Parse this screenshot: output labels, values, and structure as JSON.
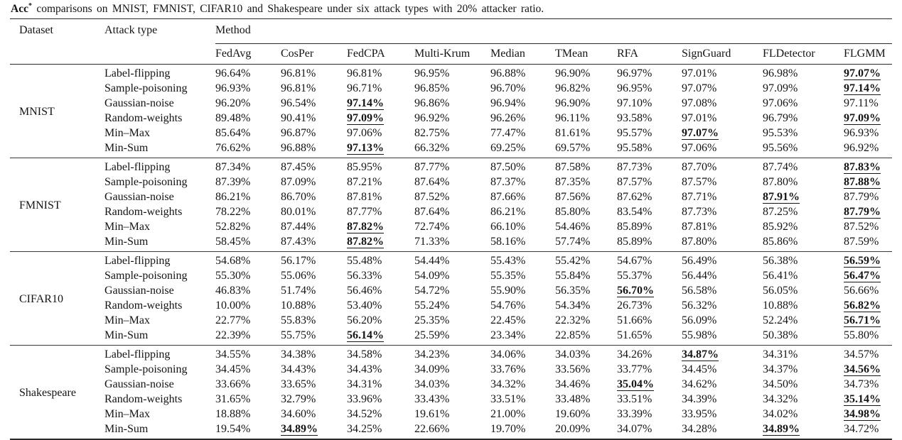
{
  "caption": {
    "metric": "Acc",
    "metric_sup": "*",
    "rest": " comparisons on MNIST, FMNIST, CIFAR10 and Shakespeare under six attack types with 20% attacker ratio."
  },
  "table": {
    "headers": {
      "dataset": "Dataset",
      "attack_type": "Attack type",
      "method_group": "Method",
      "methods": [
        "FedAvg",
        "CosPer",
        "FedCPA",
        "Multi-Krum",
        "Median",
        "TMean",
        "RFA",
        "SignGuard",
        "FLDetector",
        "FLGMM"
      ]
    },
    "groups": [
      {
        "dataset": "MNIST",
        "rows": [
          {
            "attack": "Label-flipping",
            "values": [
              "96.64%",
              "96.81%",
              "96.81%",
              "96.95%",
              "96.88%",
              "96.90%",
              "96.97%",
              "97.01%",
              "96.98%",
              "97.07%"
            ],
            "best": [
              9
            ]
          },
          {
            "attack": "Sample-poisoning",
            "values": [
              "96.93%",
              "96.81%",
              "96.71%",
              "96.85%",
              "96.70%",
              "96.82%",
              "96.95%",
              "97.07%",
              "97.09%",
              "97.14%"
            ],
            "best": [
              9
            ]
          },
          {
            "attack": "Gaussian-noise",
            "values": [
              "96.20%",
              "96.54%",
              "97.14%",
              "96.86%",
              "96.94%",
              "96.90%",
              "97.10%",
              "97.08%",
              "97.06%",
              "97.11%"
            ],
            "best": [
              2
            ]
          },
          {
            "attack": "Random-weights",
            "values": [
              "89.48%",
              "90.41%",
              "97.09%",
              "96.92%",
              "96.26%",
              "96.11%",
              "93.58%",
              "97.01%",
              "96.79%",
              "97.09%"
            ],
            "best": [
              2,
              9
            ]
          },
          {
            "attack": "Min–Max",
            "values": [
              "85.64%",
              "96.87%",
              "97.06%",
              "82.75%",
              "77.47%",
              "81.61%",
              "95.57%",
              "97.07%",
              "95.53%",
              "96.93%"
            ],
            "best": [
              7
            ]
          },
          {
            "attack": "Min-Sum",
            "values": [
              "76.62%",
              "96.88%",
              "97.13%",
              "66.32%",
              "69.25%",
              "69.57%",
              "95.58%",
              "97.06%",
              "95.56%",
              "96.92%"
            ],
            "best": [
              2
            ]
          }
        ]
      },
      {
        "dataset": "FMNIST",
        "rows": [
          {
            "attack": "Label-flipping",
            "values": [
              "87.34%",
              "87.45%",
              "85.95%",
              "87.77%",
              "87.50%",
              "87.58%",
              "87.73%",
              "87.70%",
              "87.74%",
              "87.83%"
            ],
            "best": [
              9
            ]
          },
          {
            "attack": "Sample-poisoning",
            "values": [
              "87.39%",
              "87.09%",
              "87.21%",
              "87.64%",
              "87.37%",
              "87.35%",
              "87.57%",
              "87.57%",
              "87.80%",
              "87.88%"
            ],
            "best": [
              9
            ]
          },
          {
            "attack": "Gaussian-noise",
            "values": [
              "86.21%",
              "86.70%",
              "87.81%",
              "87.52%",
              "87.66%",
              "87.56%",
              "87.62%",
              "87.71%",
              "87.91%",
              "87.79%"
            ],
            "best": [
              8
            ]
          },
          {
            "attack": "Random-weights",
            "values": [
              "78.22%",
              "80.01%",
              "87.77%",
              "87.64%",
              "86.21%",
              "85.80%",
              "83.54%",
              "87.73%",
              "87.25%",
              "87.79%"
            ],
            "best": [
              9
            ]
          },
          {
            "attack": "Min–Max",
            "values": [
              "52.82%",
              "87.44%",
              "87.82%",
              "72.74%",
              "66.10%",
              "54.46%",
              "85.89%",
              "87.81%",
              "85.92%",
              "87.52%"
            ],
            "best": [
              2
            ]
          },
          {
            "attack": "Min-Sum",
            "values": [
              "58.45%",
              "87.43%",
              "87.82%",
              "71.33%",
              "58.16%",
              "57.74%",
              "85.89%",
              "87.80%",
              "85.86%",
              "87.59%"
            ],
            "best": [
              2
            ]
          }
        ]
      },
      {
        "dataset": "CIFAR10",
        "rows": [
          {
            "attack": "Label-flipping",
            "values": [
              "54.68%",
              "56.17%",
              "55.48%",
              "54.44%",
              "55.43%",
              "55.42%",
              "54.67%",
              "56.49%",
              "56.38%",
              "56.59%"
            ],
            "best": [
              9
            ]
          },
          {
            "attack": "Sample-poisoning",
            "values": [
              "55.30%",
              "55.06%",
              "56.33%",
              "54.09%",
              "55.35%",
              "55.84%",
              "55.37%",
              "56.44%",
              "56.41%",
              "56.47%"
            ],
            "best": [
              9
            ]
          },
          {
            "attack": "Gaussian-noise",
            "values": [
              "46.83%",
              "51.74%",
              "56.46%",
              "54.72%",
              "55.90%",
              "56.35%",
              "56.70%",
              "56.58%",
              "56.05%",
              "56.66%"
            ],
            "best": [
              6
            ]
          },
          {
            "attack": "Random-weights",
            "values": [
              "10.00%",
              "10.88%",
              "53.40%",
              "55.24%",
              "54.76%",
              "54.34%",
              "26.73%",
              "56.32%",
              "10.88%",
              "56.82%"
            ],
            "best": [
              9
            ]
          },
          {
            "attack": "Min–Max",
            "values": [
              "22.77%",
              "55.83%",
              "56.20%",
              "25.35%",
              "22.45%",
              "22.32%",
              "51.66%",
              "56.09%",
              "52.24%",
              "56.71%"
            ],
            "best": [
              9
            ]
          },
          {
            "attack": "Min-Sum",
            "values": [
              "22.39%",
              "55.75%",
              "56.14%",
              "25.59%",
              "23.34%",
              "22.85%",
              "51.65%",
              "55.98%",
              "50.38%",
              "55.80%"
            ],
            "best": [
              2
            ]
          }
        ]
      },
      {
        "dataset": "Shakespeare",
        "rows": [
          {
            "attack": "Label-flipping",
            "values": [
              "34.55%",
              "34.38%",
              "34.58%",
              "34.23%",
              "34.06%",
              "34.03%",
              "34.26%",
              "34.87%",
              "34.31%",
              "34.57%"
            ],
            "best": [
              7
            ]
          },
          {
            "attack": "Sample-poisoning",
            "values": [
              "34.45%",
              "34.43%",
              "34.43%",
              "34.09%",
              "33.76%",
              "33.56%",
              "33.77%",
              "34.45%",
              "34.37%",
              "34.56%"
            ],
            "best": [
              9
            ]
          },
          {
            "attack": "Gaussian-noise",
            "values": [
              "33.66%",
              "33.65%",
              "34.31%",
              "34.03%",
              "34.32%",
              "34.46%",
              "35.04%",
              "34.62%",
              "34.50%",
              "34.73%"
            ],
            "best": [
              6
            ]
          },
          {
            "attack": "Random-weights",
            "values": [
              "31.65%",
              "32.79%",
              "33.96%",
              "33.43%",
              "33.51%",
              "33.48%",
              "33.51%",
              "34.39%",
              "34.32%",
              "35.14%"
            ],
            "best": [
              9
            ]
          },
          {
            "attack": "Min–Max",
            "values": [
              "18.88%",
              "34.60%",
              "34.52%",
              "19.61%",
              "21.00%",
              "19.60%",
              "33.39%",
              "33.95%",
              "34.02%",
              "34.98%"
            ],
            "best": [
              9
            ]
          },
          {
            "attack": "Min-Sum",
            "values": [
              "19.54%",
              "34.89%",
              "34.25%",
              "22.66%",
              "19.70%",
              "20.09%",
              "34.07%",
              "34.28%",
              "34.89%",
              "34.72%"
            ],
            "best": [
              1,
              8
            ]
          }
        ]
      }
    ]
  }
}
